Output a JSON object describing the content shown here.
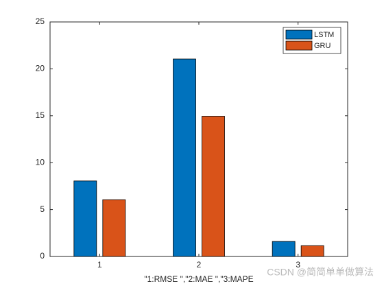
{
  "chart_data": {
    "type": "bar",
    "x_label": "\"1:RMSE    \",\"2:MAE    \",\"3:MAPE",
    "categories": [
      "1",
      "2",
      "3"
    ],
    "series": [
      {
        "name": "LSTM",
        "color": "#0072bd",
        "values": [
          8.05,
          21.05,
          1.6
        ]
      },
      {
        "name": "GRU",
        "color": "#d95319",
        "values": [
          6.05,
          14.95,
          1.15
        ]
      }
    ],
    "ylim": [
      0,
      25
    ],
    "yticks": [
      0,
      5,
      10,
      15,
      20,
      25
    ],
    "legend": "top-right",
    "watermark": "CSDN @简简单单做算法"
  }
}
